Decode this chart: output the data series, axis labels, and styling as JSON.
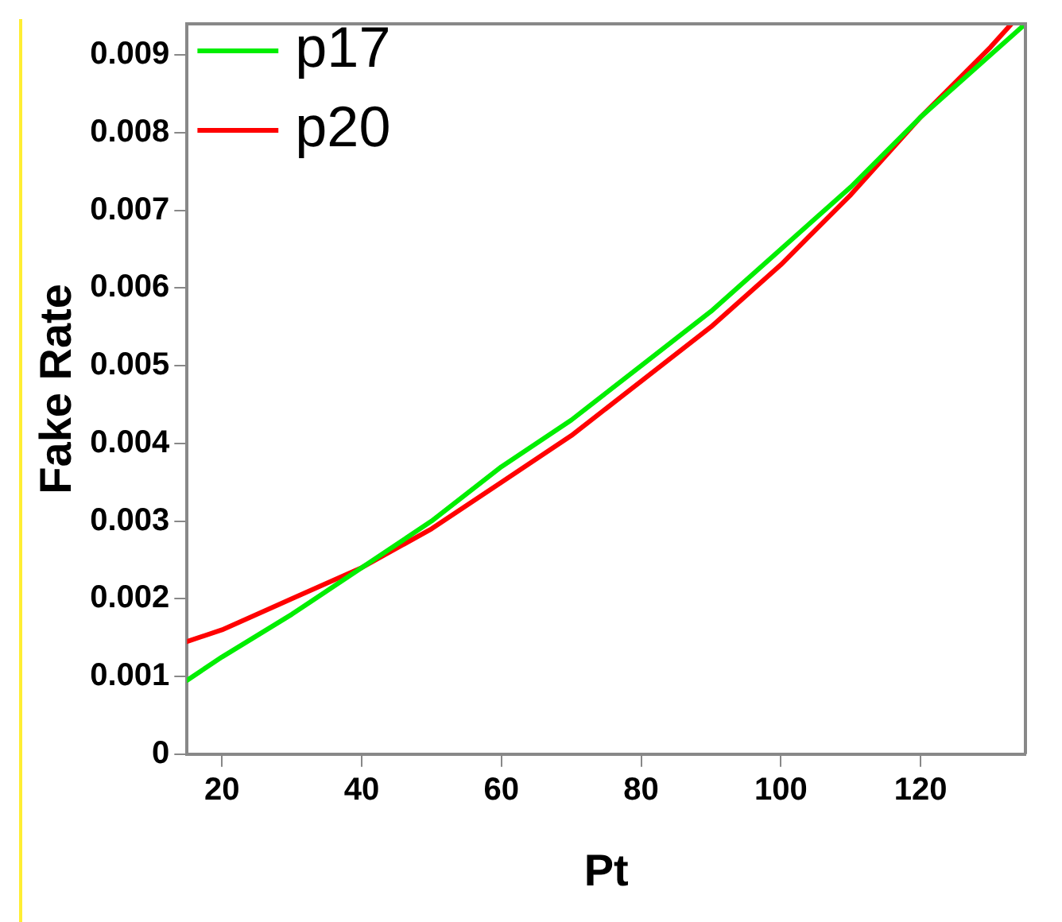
{
  "chart_data": {
    "type": "line",
    "xlabel": "Pt",
    "ylabel": "Fake Rate",
    "xlim": [
      15,
      135
    ],
    "xticks": [
      20,
      40,
      60,
      80,
      100,
      120
    ],
    "ylim": [
      0,
      0.0094
    ],
    "yticks": [
      0,
      0.001,
      0.002,
      0.003,
      0.004,
      0.005,
      0.006,
      0.007,
      0.008,
      0.009
    ],
    "legend": "top left",
    "grid": false,
    "marker": "none",
    "line_style": "solid",
    "series": [
      {
        "name": "p17",
        "color": "#00ee00",
        "x": [
          15,
          20,
          30,
          40,
          50,
          60,
          70,
          80,
          90,
          100,
          110,
          120,
          130,
          135
        ],
        "values": [
          0.00095,
          0.00125,
          0.0018,
          0.0024,
          0.003,
          0.0037,
          0.0043,
          0.005,
          0.0057,
          0.0065,
          0.0073,
          0.0082,
          0.009,
          0.0094
        ]
      },
      {
        "name": "p20",
        "color": "#ff0000",
        "x": [
          15,
          20,
          30,
          40,
          50,
          60,
          70,
          80,
          90,
          100,
          110,
          120,
          130,
          133
        ],
        "values": [
          0.00145,
          0.0016,
          0.002,
          0.0024,
          0.0029,
          0.0035,
          0.0041,
          0.0048,
          0.0055,
          0.0063,
          0.0072,
          0.0082,
          0.0091,
          0.0094
        ]
      }
    ]
  }
}
